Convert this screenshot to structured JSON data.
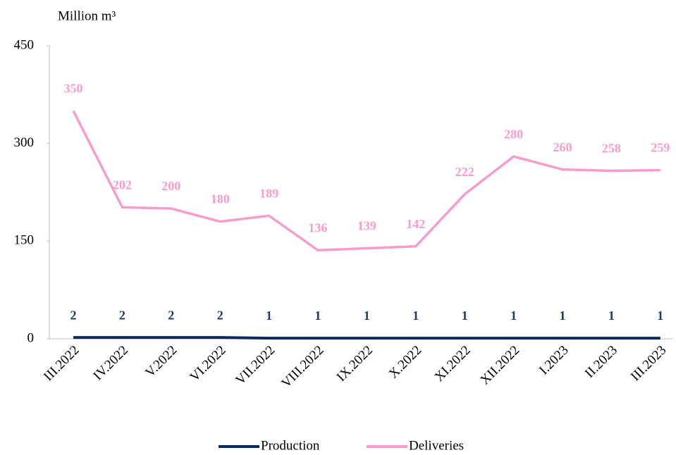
{
  "chart_data": {
    "type": "line",
    "y_label": "Million m³",
    "categories": [
      "III.2022",
      "IV.2022",
      "V.2022",
      "VI.2022",
      "VII.2022",
      "VIII.2022",
      "IX.2022",
      "X.2022",
      "XI.2022",
      "XII.2022",
      "I.2023",
      "II.2023",
      "III.2023"
    ],
    "series": [
      {
        "name": "Production",
        "color": "#0d2a5c",
        "values": [
          2,
          2,
          2,
          2,
          1,
          1,
          1,
          1,
          1,
          1,
          1,
          1,
          1
        ]
      },
      {
        "name": "Deliveries",
        "color": "#f99ccc",
        "values": [
          350,
          202,
          200,
          180,
          189,
          136,
          139,
          142,
          222,
          280,
          260,
          258,
          259
        ]
      }
    ],
    "ylim": [
      0,
      450
    ],
    "yticks": [
      0,
      150,
      300,
      450
    ],
    "grid": false,
    "legend": "bottom"
  }
}
